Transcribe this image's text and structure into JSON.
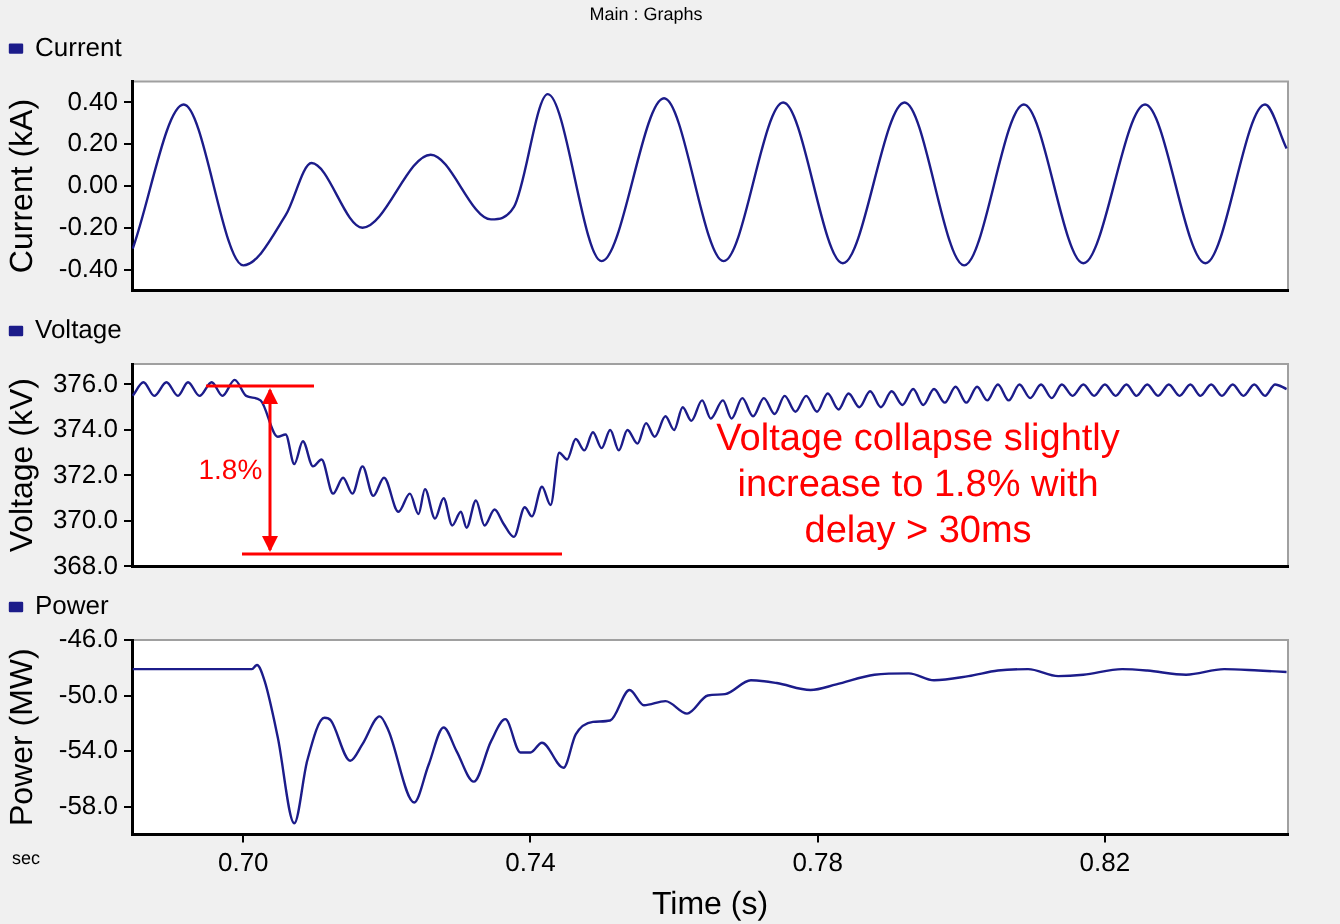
{
  "chart_data": [
    {
      "type": "line",
      "title": "Main : Graphs",
      "ylabel": "Current (kA)",
      "legend": "top left",
      "tick_labels": "y",
      "marker": "none",
      "line_style": "solid",
      "xlim": [
        0.6845,
        0.8455
      ],
      "ylim": [
        -0.5,
        0.5
      ],
      "yticks": [
        {
          "value": -0.4,
          "label": "-0.40"
        },
        {
          "value": -0.2,
          "label": "-0.20"
        },
        {
          "value": 0,
          "label": "0.00"
        },
        {
          "value": 0.2,
          "label": "0.20"
        },
        {
          "value": 0.4,
          "label": "0.40"
        }
      ],
      "x": [
        0.6846,
        0.6917,
        0.7,
        0.7059,
        0.7095,
        0.7166,
        0.7261,
        0.7345,
        0.7377,
        0.7424,
        0.7499,
        0.7586,
        0.7669,
        0.7752,
        0.7835,
        0.7921,
        0.8004,
        0.8087,
        0.817,
        0.8256,
        0.834,
        0.8423,
        0.8453
      ],
      "series": [
        {
          "name": "Current",
          "color": "#1c1c8a",
          "values": [
            -0.3,
            0.39,
            -0.38,
            -0.14,
            0.11,
            -0.2,
            0.15,
            -0.16,
            -0.1,
            0.44,
            -0.36,
            0.42,
            -0.36,
            0.4,
            -0.37,
            0.4,
            -0.38,
            0.39,
            -0.37,
            0.39,
            -0.37,
            0.39,
            0.18
          ]
        }
      ]
    },
    {
      "type": "line",
      "ylabel": "Voltage (kV)",
      "legend": "top left",
      "tick_labels": "y",
      "marker": "none",
      "line_style": "solid",
      "xlim": [
        0.6845,
        0.8455
      ],
      "ylim": [
        368,
        376.9
      ],
      "yticks": [
        {
          "value": 368,
          "label": "368.0"
        },
        {
          "value": 370,
          "label": "370.0"
        },
        {
          "value": 372,
          "label": "372.0"
        },
        {
          "value": 374,
          "label": "374.0"
        },
        {
          "value": 376,
          "label": "376.0"
        }
      ],
      "annotations": [
        {
          "text": "1.8%",
          "x": 0.6982,
          "y": 372.2
        },
        "Voltage collapse slightly increase to 1.8% with delay > 30ms"
      ],
      "x": [
        0.6846,
        0.6861,
        0.6876,
        0.6893,
        0.6909,
        0.6923,
        0.6939,
        0.6956,
        0.6971,
        0.6988,
        0.7004,
        0.7024,
        0.7048,
        0.7059,
        0.7071,
        0.7083,
        0.7097,
        0.7109,
        0.7125,
        0.7139,
        0.7152,
        0.7166,
        0.7181,
        0.7196,
        0.7216,
        0.7232,
        0.7244,
        0.7253,
        0.7267,
        0.7279,
        0.7291,
        0.7303,
        0.7311,
        0.7324,
        0.7336,
        0.735,
        0.7362,
        0.7377,
        0.7392,
        0.7402,
        0.7416,
        0.7428,
        0.744,
        0.7451,
        0.7463,
        0.7475,
        0.7487,
        0.7499,
        0.7511,
        0.7523,
        0.7535,
        0.7549,
        0.7561,
        0.7573,
        0.7588,
        0.76,
        0.7612,
        0.7624,
        0.7639,
        0.7651,
        0.7668,
        0.768,
        0.7695,
        0.771,
        0.7725,
        0.774,
        0.7754,
        0.7769,
        0.7784,
        0.7799,
        0.7814,
        0.7829,
        0.7843,
        0.7858,
        0.7873,
        0.7888,
        0.7903,
        0.7918,
        0.7933,
        0.7947,
        0.7962,
        0.7977,
        0.7992,
        0.8007,
        0.8022,
        0.8036,
        0.8051,
        0.8066,
        0.8081,
        0.8096,
        0.8111,
        0.8126,
        0.814,
        0.8155,
        0.817,
        0.8185,
        0.82,
        0.8215,
        0.823,
        0.8244,
        0.8259,
        0.8274,
        0.8289,
        0.8304,
        0.8319,
        0.8333,
        0.8348,
        0.8363,
        0.8378,
        0.8393,
        0.8408,
        0.8423,
        0.8437,
        0.8453
      ],
      "series": [
        {
          "name": "Voltage",
          "color": "#1c1c8a",
          "values": [
            375.5,
            376.1,
            375.5,
            376.1,
            375.5,
            376.1,
            375.5,
            376.1,
            375.5,
            376.2,
            375.5,
            375.3,
            373.7,
            373.8,
            372.5,
            373.5,
            372.4,
            372.7,
            371.2,
            371.9,
            371.2,
            372.4,
            371.1,
            371.9,
            370.4,
            371.2,
            370.3,
            371.4,
            370.1,
            371.0,
            369.8,
            370.4,
            369.7,
            370.9,
            369.8,
            370.5,
            369.9,
            369.3,
            370.6,
            370.2,
            371.5,
            370.7,
            373.0,
            372.7,
            373.6,
            373.1,
            373.9,
            373.2,
            374.0,
            373.1,
            374.0,
            373.4,
            374.3,
            373.7,
            374.6,
            374.0,
            375.0,
            374.4,
            375.3,
            374.5,
            375.3,
            374.5,
            375.4,
            374.6,
            375.4,
            374.7,
            375.5,
            374.8,
            375.5,
            374.8,
            375.6,
            374.9,
            375.6,
            375.0,
            375.7,
            375.0,
            375.7,
            375.1,
            375.8,
            375.1,
            375.8,
            375.2,
            375.9,
            375.2,
            375.9,
            375.3,
            376.0,
            375.3,
            376.0,
            375.4,
            376.0,
            375.4,
            376.0,
            375.5,
            376.0,
            375.5,
            376.0,
            375.5,
            376.0,
            375.5,
            376.0,
            375.5,
            376.0,
            375.5,
            376.0,
            375.5,
            376.0,
            375.5,
            376.0,
            375.5,
            376.0,
            375.5,
            376.0,
            375.8
          ]
        }
      ]
    },
    {
      "type": "line",
      "xlabel": "Time (s)",
      "ylabel": "Power (MW)",
      "legend": "top left",
      "marker": "none",
      "line_style": "solid",
      "xlim": [
        0.6845,
        0.8455
      ],
      "xticks": [
        {
          "value": 0.7,
          "label": "0.70"
        },
        {
          "value": 0.74,
          "label": "0.74"
        },
        {
          "value": 0.78,
          "label": "0.78"
        },
        {
          "value": 0.82,
          "label": "0.82"
        }
      ],
      "ylim": [
        -60,
        -46
      ],
      "yticks": [
        {
          "value": -58,
          "label": "-58.0"
        },
        {
          "value": -54,
          "label": "-54.0"
        },
        {
          "value": -50,
          "label": "-50.0"
        },
        {
          "value": -46,
          "label": "-46.0"
        }
      ],
      "annotations": [
        "sec"
      ],
      "x": [
        0.6846,
        0.7012,
        0.7019,
        0.703,
        0.7048,
        0.7071,
        0.7089,
        0.7113,
        0.7122,
        0.7149,
        0.7166,
        0.719,
        0.7202,
        0.7238,
        0.7258,
        0.7279,
        0.7297,
        0.7321,
        0.7345,
        0.7365,
        0.7386,
        0.74,
        0.7416,
        0.7446,
        0.7463,
        0.7487,
        0.7511,
        0.7538,
        0.7558,
        0.7588,
        0.7618,
        0.7647,
        0.7671,
        0.7707,
        0.7743,
        0.779,
        0.7826,
        0.7879,
        0.7927,
        0.7962,
        0.801,
        0.8051,
        0.8093,
        0.8135,
        0.817,
        0.8224,
        0.8259,
        0.8313,
        0.8366,
        0.8414,
        0.8453
      ],
      "series": [
        {
          "name": "Power",
          "color": "#1c1c8a",
          "values": [
            -48.1,
            -48.1,
            -47.8,
            -49.0,
            -53.0,
            -59.2,
            -54.7,
            -51.6,
            -51.8,
            -54.7,
            -53.5,
            -51.5,
            -52.5,
            -57.7,
            -55.0,
            -52.3,
            -54.0,
            -56.2,
            -53.3,
            -51.7,
            -54.1,
            -54.1,
            -53.4,
            -55.2,
            -52.8,
            -51.9,
            -51.8,
            -49.6,
            -50.7,
            -50.4,
            -51.3,
            -50.0,
            -49.9,
            -48.9,
            -49.1,
            -49.6,
            -49.2,
            -48.5,
            -48.4,
            -48.9,
            -48.6,
            -48.2,
            -48.1,
            -48.6,
            -48.5,
            -48.1,
            -48.2,
            -48.5,
            -48.1,
            -48.2,
            -48.3
          ]
        }
      ]
    }
  ]
}
